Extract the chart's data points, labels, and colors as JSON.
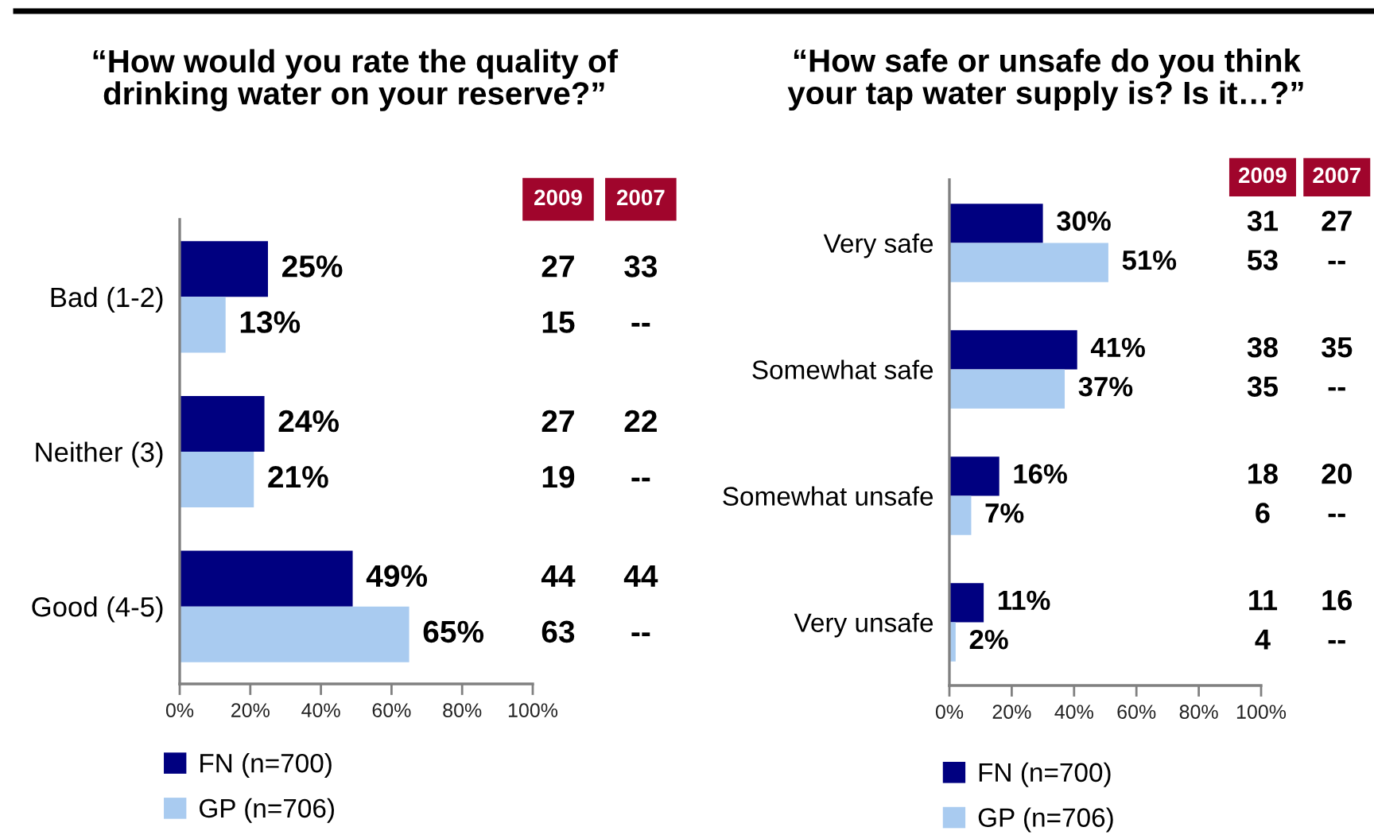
{
  "chart_data": [
    {
      "type": "bar",
      "orientation": "horizontal",
      "title": "“How would you rate the quality of\ndrinking water on your reserve?”",
      "categories": [
        "Bad (1-2)",
        "Neither (3)",
        "Good (4-5)"
      ],
      "series": [
        {
          "name": "FN (n=700)",
          "color": "#000080",
          "values": [
            25,
            24,
            49
          ],
          "value_labels": [
            "25%",
            "24%",
            "49%"
          ]
        },
        {
          "name": "GP (n=706)",
          "color": "#a9cbf0",
          "values": [
            13,
            21,
            65
          ],
          "value_labels": [
            "13%",
            "21%",
            "65%"
          ]
        }
      ],
      "xlim": [
        0,
        100
      ],
      "xticks": [
        {
          "value": 0,
          "label": "0%"
        },
        {
          "value": 20,
          "label": "20%"
        },
        {
          "value": 40,
          "label": "40%"
        },
        {
          "value": 60,
          "label": "60%"
        },
        {
          "value": 80,
          "label": "80%"
        },
        {
          "value": 100,
          "label": "100%"
        }
      ],
      "grid": false,
      "legend": "bottom",
      "annotations": [
        "2009",
        "2007",
        "27",
        "33",
        "15",
        "--",
        "27",
        "22",
        "19",
        "--",
        "44",
        "44",
        "63",
        "--"
      ]
    },
    {
      "type": "bar",
      "orientation": "horizontal",
      "title": "“How safe or unsafe do you think\nyour tap water supply is? Is it…?”",
      "categories": [
        "Very safe",
        "Somewhat safe",
        "Somewhat unsafe",
        "Very unsafe"
      ],
      "series": [
        {
          "name": "FN (n=700)",
          "color": "#000080",
          "values": [
            30,
            41,
            16,
            11
          ],
          "value_labels": [
            "30%",
            "41%",
            "16%",
            "11%"
          ]
        },
        {
          "name": "GP (n=706)",
          "color": "#a9cbf0",
          "values": [
            51,
            37,
            7,
            2
          ],
          "value_labels": [
            "51%",
            "37%",
            "7%",
            "2%"
          ]
        }
      ],
      "xlim": [
        0,
        100
      ],
      "xticks": [
        {
          "value": 0,
          "label": "0%"
        },
        {
          "value": 20,
          "label": "20%"
        },
        {
          "value": 40,
          "label": "40%"
        },
        {
          "value": 60,
          "label": "60%"
        },
        {
          "value": 80,
          "label": "80%"
        },
        {
          "value": 100,
          "label": "100%"
        }
      ],
      "grid": false,
      "legend": "bottom",
      "annotations": [
        "2009",
        "2007",
        "31",
        "27",
        "53",
        "--",
        "38",
        "35",
        "35",
        "--",
        "18",
        "20",
        "6",
        "--",
        "11",
        "16",
        "4",
        "--"
      ]
    }
  ]
}
